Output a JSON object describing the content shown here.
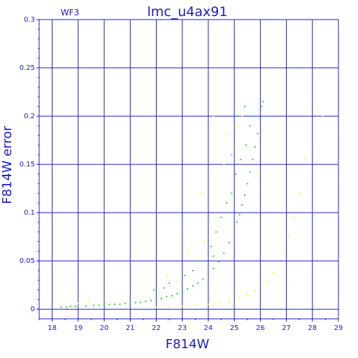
{
  "chart_data": {
    "type": "scatter",
    "title": "lmc_u4ax91",
    "tag": "WF3",
    "xlabel": "F814W",
    "ylabel": "F814W error",
    "xlim": [
      17.5,
      29
    ],
    "ylim": [
      -0.01,
      0.3
    ],
    "grid": true,
    "x_ticks": [
      "18",
      "19",
      "20",
      "21",
      "22",
      "23",
      "24",
      "25",
      "26",
      "27",
      "28",
      "29"
    ],
    "y_ticks": [
      "0",
      "0.05",
      "0.1",
      "0.15",
      "0.2",
      "0.25",
      "0.3"
    ],
    "colors": {
      "axis": "#1a1acc",
      "green": "#22dd22",
      "yellow": "#ffff00"
    },
    "series": [
      {
        "color": "green",
        "points": [
          [
            18.35,
            0.002
          ],
          [
            18.55,
            0.002
          ],
          [
            18.7,
            0.003
          ],
          [
            18.9,
            0.003
          ],
          [
            19.3,
            0.003
          ],
          [
            19.6,
            0.004
          ],
          [
            19.8,
            0.004
          ],
          [
            20.0,
            0.004
          ],
          [
            20.2,
            0.005
          ],
          [
            20.4,
            0.005
          ],
          [
            20.6,
            0.005
          ],
          [
            20.8,
            0.006
          ],
          [
            21.0,
            0.006
          ],
          [
            21.2,
            0.007
          ],
          [
            21.4,
            0.007
          ],
          [
            21.6,
            0.008
          ],
          [
            21.8,
            0.009
          ],
          [
            22.0,
            0.01
          ],
          [
            22.2,
            0.011
          ],
          [
            22.4,
            0.013
          ],
          [
            22.6,
            0.014
          ],
          [
            22.8,
            0.016
          ],
          [
            23.0,
            0.018
          ],
          [
            23.2,
            0.021
          ],
          [
            23.4,
            0.024
          ],
          [
            23.6,
            0.027
          ],
          [
            23.8,
            0.031
          ],
          [
            24.0,
            0.036
          ],
          [
            24.2,
            0.042
          ],
          [
            24.4,
            0.049
          ],
          [
            24.6,
            0.058
          ],
          [
            24.8,
            0.069
          ],
          [
            25.0,
            0.083
          ],
          [
            25.1,
            0.09
          ],
          [
            25.2,
            0.098
          ],
          [
            25.3,
            0.108
          ],
          [
            25.4,
            0.118
          ],
          [
            25.5,
            0.13
          ],
          [
            25.6,
            0.142
          ],
          [
            25.7,
            0.155
          ],
          [
            25.8,
            0.168
          ],
          [
            25.9,
            0.182
          ],
          [
            26.0,
            0.197
          ],
          [
            26.05,
            0.21
          ],
          [
            26.1,
            0.215
          ],
          [
            21.9,
            0.02
          ],
          [
            22.5,
            0.027
          ],
          [
            23.1,
            0.035
          ],
          [
            23.7,
            0.05
          ],
          [
            24.1,
            0.065
          ],
          [
            24.3,
            0.08
          ],
          [
            24.5,
            0.095
          ],
          [
            24.7,
            0.11
          ],
          [
            24.9,
            0.12
          ],
          [
            25.05,
            0.14
          ],
          [
            25.25,
            0.155
          ],
          [
            25.45,
            0.17
          ],
          [
            25.6,
            0.19
          ],
          [
            25.8,
            0.2
          ],
          [
            25.4,
            0.21
          ],
          [
            24.9,
            0.16
          ],
          [
            25.1,
            0.2
          ],
          [
            22.3,
            0.022
          ],
          [
            23.4,
            0.04
          ],
          [
            24.2,
            0.055
          ]
        ]
      },
      {
        "color": "yellow",
        "points": [
          [
            19.0,
            0.006
          ],
          [
            19.4,
            0.008
          ],
          [
            22.0,
            0.002
          ],
          [
            22.5,
            0.002
          ],
          [
            23.0,
            0.003
          ],
          [
            23.5,
            0.004
          ],
          [
            24.0,
            0.005
          ],
          [
            24.4,
            0.007
          ],
          [
            24.8,
            0.009
          ],
          [
            25.2,
            0.012
          ],
          [
            25.5,
            0.015
          ],
          [
            25.8,
            0.019
          ],
          [
            26.1,
            0.025
          ],
          [
            26.3,
            0.03
          ],
          [
            26.5,
            0.038
          ],
          [
            26.7,
            0.047
          ],
          [
            26.9,
            0.06
          ],
          [
            27.1,
            0.075
          ],
          [
            27.3,
            0.095
          ],
          [
            27.5,
            0.12
          ],
          [
            27.7,
            0.155
          ],
          [
            28.2,
            0.21
          ],
          [
            28.4,
            0.2
          ],
          [
            24.2,
            0.2
          ],
          [
            24.7,
            0.18
          ],
          [
            25.1,
            0.19
          ],
          [
            25.2,
            0.165
          ],
          [
            23.7,
            0.12
          ],
          [
            23.8,
            0.07
          ],
          [
            24.6,
            0.15
          ],
          [
            25.9,
            0.14
          ],
          [
            25.3,
            0.2
          ],
          [
            22.4,
            0.035
          ],
          [
            23.2,
            0.06
          ],
          [
            22.8,
            0.03
          ]
        ]
      }
    ]
  }
}
